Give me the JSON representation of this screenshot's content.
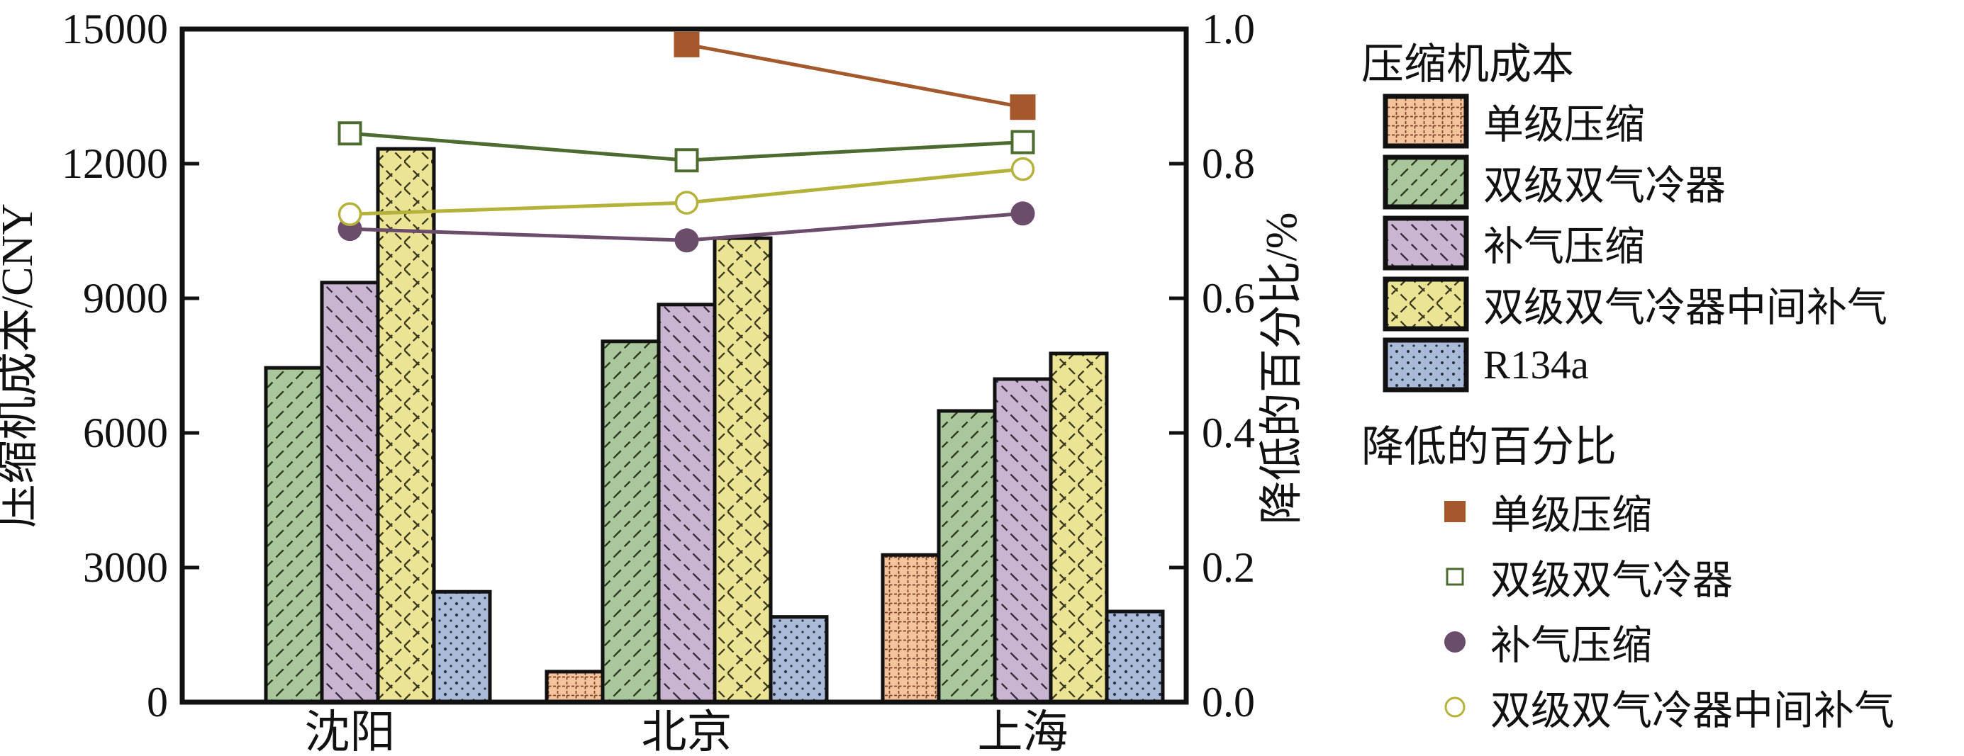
{
  "figure": {
    "type": "combined bar and line chart",
    "x_axis_label": "",
    "background": "#ffffff"
  },
  "chart_data": {
    "type": "bar+line",
    "categories": [
      "沈阳",
      "北京",
      "上海"
    ],
    "xlabel": "",
    "ylabel_left": "压缩机成本/CNY",
    "ylabel_right": "降低的百分比/%",
    "ylim_left": [
      0,
      15000
    ],
    "ylim_right": [
      0.0,
      1.0
    ],
    "yticks_left": [
      "0",
      "3000",
      "6000",
      "9000",
      "12000",
      "15000"
    ],
    "yticks_right": [
      "0.0",
      "0.2",
      "0.4",
      "0.6",
      "0.8",
      "1.0"
    ],
    "grid": "off",
    "legend_position": "right",
    "bar_series": [
      {
        "name": "单级压缩",
        "fill": "#F4C49C",
        "hatch": "grid",
        "hatch_color": "#7D4228",
        "values": [
          null,
          680,
          3280
        ]
      },
      {
        "name": "双级双气冷器",
        "fill": "#A9C79B",
        "hatch": "diag-forward",
        "hatch_color": "#2E3B24",
        "values": [
          7450,
          8040,
          6490
        ]
      },
      {
        "name": "补气压缩",
        "fill": "#C9B5D1",
        "hatch": "diag-back",
        "hatch_color": "#3A2E3E",
        "values": [
          9350,
          8860,
          7200
        ]
      },
      {
        "name": "双级双气冷器中间补气",
        "fill": "#ECE495",
        "hatch": "diamond",
        "hatch_color": "#3E3A20",
        "values": [
          12330,
          10340,
          7770
        ]
      },
      {
        "name": "R134a",
        "fill": "#AABBDA",
        "hatch": "dots",
        "hatch_color": "#2A3242",
        "values": [
          2460,
          1900,
          2020
        ]
      }
    ],
    "line_series": [
      {
        "name": "单级压缩",
        "color": "#A4582B",
        "marker": "square-filled",
        "values": [
          null,
          0.977,
          0.884
        ]
      },
      {
        "name": "双级双气冷器",
        "color": "#4C6B2F",
        "marker": "square-open",
        "values": [
          0.845,
          0.805,
          0.832
        ]
      },
      {
        "name": "补气压缩",
        "color": "#6B4C6B",
        "marker": "circle-filled",
        "values": [
          0.703,
          0.686,
          0.726
        ]
      },
      {
        "name": "双级双气冷器中间补气",
        "color": "#B5B23C",
        "marker": "circle-open",
        "values": [
          0.725,
          0.742,
          0.792
        ]
      }
    ]
  },
  "legend": {
    "bars_title": "压缩机成本",
    "bar_items": [
      "单级压缩",
      "双级双气冷器",
      "补气压缩",
      "双级双气冷器中间补气",
      "R134a"
    ],
    "lines_title": "降低的百分比",
    "line_items": [
      "单级压缩",
      "双级双气冷器",
      "补气压缩",
      "双级双气冷器中间补气"
    ]
  }
}
